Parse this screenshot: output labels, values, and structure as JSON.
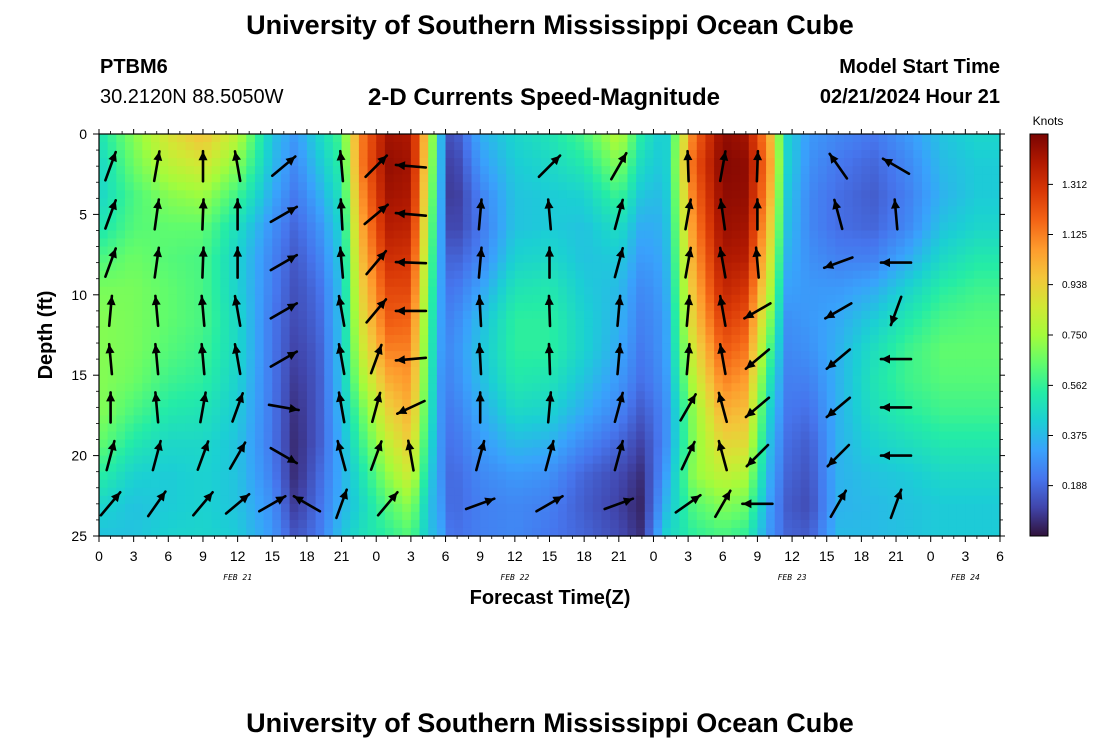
{
  "header": {
    "title": "University of Southern Mississippi Ocean Cube",
    "station_name": "PTBM6",
    "station_coords": "30.2120N  88.5050W",
    "plot_title": "2-D Currents Speed-Magnitude",
    "model_start_label": "Model Start Time",
    "model_start_value": "02/21/2024 Hour 21"
  },
  "footer": {
    "title": "University of Southern Mississippi Ocean Cube"
  },
  "chart_data": {
    "type": "heatmap",
    "subtype": "depth-time section with current vectors",
    "xlabel": "Forecast Time(Z)",
    "ylabel": "Depth (ft)",
    "x_ticks": [
      "0",
      "3",
      "6",
      "9",
      "12",
      "15",
      "18",
      "21",
      "0",
      "3",
      "6",
      "9",
      "12",
      "15",
      "18",
      "21",
      "0",
      "3",
      "6",
      "9",
      "12",
      "15",
      "18",
      "21",
      "0",
      "3",
      "6"
    ],
    "x_range_hours": [
      0,
      78
    ],
    "day_labels": [
      {
        "label": "FEB 21",
        "hour": 12
      },
      {
        "label": "FEB 22",
        "hour": 36
      },
      {
        "label": "FEB 23",
        "hour": 60
      },
      {
        "label": "FEB 24",
        "hour": 75
      }
    ],
    "y_ticks": [
      0,
      5,
      10,
      15,
      20,
      25
    ],
    "ylim": [
      0,
      25
    ],
    "y_inverted": true,
    "colorbar": {
      "unit_label": "Knots",
      "ticks": [
        "0.188",
        "0.375",
        "0.562",
        "0.750",
        "0.938",
        "1.125",
        "1.312"
      ],
      "range": [
        0,
        1.5
      ],
      "palette": [
        "#30123b",
        "#4145ab",
        "#4675ed",
        "#39a2fc",
        "#1bcfd4",
        "#24eca6",
        "#61fc6c",
        "#a4fc3b",
        "#d1e834",
        "#f3c63a",
        "#fe9b2d",
        "#f36315",
        "#d93806",
        "#b11901",
        "#7a0402"
      ]
    },
    "grid": false,
    "speed_columns": [
      {
        "hour": 0,
        "speeds": [
          0.5,
          0.45,
          0.45,
          0.5,
          0.6,
          0.68,
          0.7,
          0.7,
          0.7,
          0.7,
          0.65,
          0.55,
          0.45,
          0.4
        ]
      },
      {
        "hour": 3,
        "speeds": [
          0.7,
          0.66,
          0.6,
          0.62,
          0.66,
          0.68,
          0.68,
          0.68,
          0.66,
          0.6,
          0.52,
          0.44,
          0.4,
          0.4
        ]
      },
      {
        "hour": 6,
        "speeds": [
          0.88,
          0.8,
          0.7,
          0.64,
          0.62,
          0.64,
          0.64,
          0.62,
          0.58,
          0.52,
          0.46,
          0.42,
          0.42,
          0.44
        ]
      },
      {
        "hour": 9,
        "speeds": [
          0.98,
          0.86,
          0.74,
          0.64,
          0.6,
          0.6,
          0.6,
          0.58,
          0.55,
          0.5,
          0.46,
          0.44,
          0.44,
          0.45
        ]
      },
      {
        "hour": 12,
        "speeds": [
          0.8,
          0.7,
          0.58,
          0.48,
          0.44,
          0.44,
          0.46,
          0.46,
          0.44,
          0.42,
          0.4,
          0.4,
          0.4,
          0.42
        ]
      },
      {
        "hour": 15,
        "speeds": [
          0.4,
          0.38,
          0.34,
          0.28,
          0.25,
          0.24,
          0.22,
          0.22,
          0.22,
          0.22,
          0.22,
          0.24,
          0.28,
          0.3
        ]
      },
      {
        "hour": 17,
        "speeds": [
          0.3,
          0.26,
          0.22,
          0.18,
          0.15,
          0.13,
          0.12,
          0.1,
          0.08,
          0.06,
          0.05,
          0.05,
          0.08,
          0.14
        ]
      },
      {
        "hour": 19,
        "speeds": [
          0.45,
          0.4,
          0.34,
          0.28,
          0.24,
          0.2,
          0.18,
          0.16,
          0.15,
          0.15,
          0.15,
          0.18,
          0.2,
          0.22
        ]
      },
      {
        "hour": 21,
        "speeds": [
          0.6,
          0.55,
          0.5,
          0.45,
          0.42,
          0.4,
          0.4,
          0.4,
          0.4,
          0.38,
          0.36,
          0.35,
          0.36,
          0.4
        ]
      },
      {
        "hour": 22.5,
        "speeds": [
          1.1,
          1.1,
          1.05,
          1.0,
          0.95,
          0.9,
          0.85,
          0.8,
          0.72,
          0.62,
          0.55,
          0.48,
          0.44,
          0.48
        ]
      },
      {
        "hour": 25,
        "speeds": [
          1.42,
          1.45,
          1.42,
          1.38,
          1.32,
          1.25,
          1.2,
          1.12,
          1.02,
          0.92,
          0.82,
          0.72,
          0.62,
          0.55
        ]
      },
      {
        "hour": 27,
        "speeds": [
          1.4,
          1.42,
          1.4,
          1.36,
          1.3,
          1.25,
          1.18,
          1.12,
          1.08,
          1.02,
          0.95,
          0.86,
          0.72,
          0.62
        ]
      },
      {
        "hour": 28.5,
        "speeds": [
          0.9,
          0.85,
          0.8,
          0.75,
          0.7,
          0.66,
          0.62,
          0.6,
          0.58,
          0.55,
          0.5,
          0.45,
          0.4,
          0.4
        ]
      },
      {
        "hour": 29.5,
        "speeds": [
          0.4,
          0.4,
          0.38,
          0.36,
          0.35,
          0.34,
          0.33,
          0.32,
          0.3,
          0.3,
          0.3,
          0.3,
          0.32,
          0.35
        ]
      },
      {
        "hour": 30.5,
        "speeds": [
          0.1,
          0.06,
          0.05,
          0.08,
          0.15,
          0.2,
          0.24,
          0.26,
          0.25,
          0.22,
          0.2,
          0.18,
          0.18,
          0.2
        ]
      },
      {
        "hour": 33,
        "speeds": [
          0.35,
          0.3,
          0.24,
          0.22,
          0.25,
          0.32,
          0.38,
          0.4,
          0.38,
          0.34,
          0.3,
          0.26,
          0.24,
          0.24
        ]
      },
      {
        "hour": 36,
        "speeds": [
          0.45,
          0.42,
          0.4,
          0.4,
          0.44,
          0.5,
          0.55,
          0.55,
          0.52,
          0.46,
          0.38,
          0.3,
          0.26,
          0.26
        ]
      },
      {
        "hour": 39,
        "speeds": [
          0.5,
          0.46,
          0.42,
          0.42,
          0.46,
          0.52,
          0.55,
          0.55,
          0.5,
          0.44,
          0.36,
          0.28,
          0.24,
          0.22
        ]
      },
      {
        "hour": 42,
        "speeds": [
          0.6,
          0.52,
          0.44,
          0.4,
          0.4,
          0.42,
          0.44,
          0.44,
          0.4,
          0.34,
          0.26,
          0.18,
          0.16,
          0.18
        ]
      },
      {
        "hour": 45,
        "speeds": [
          0.8,
          0.7,
          0.58,
          0.48,
          0.42,
          0.38,
          0.36,
          0.34,
          0.3,
          0.25,
          0.18,
          0.12,
          0.1,
          0.12
        ]
      },
      {
        "hour": 47,
        "speeds": [
          0.52,
          0.46,
          0.4,
          0.34,
          0.3,
          0.26,
          0.24,
          0.22,
          0.2,
          0.15,
          0.1,
          0.06,
          0.04,
          0.06
        ]
      },
      {
        "hour": 49,
        "speeds": [
          0.4,
          0.4,
          0.38,
          0.36,
          0.34,
          0.32,
          0.3,
          0.3,
          0.28,
          0.26,
          0.26,
          0.3,
          0.36,
          0.44
        ]
      },
      {
        "hour": 51.5,
        "speeds": [
          1.15,
          1.2,
          1.15,
          1.1,
          1.05,
          1.0,
          0.95,
          0.88,
          0.8,
          0.72,
          0.7,
          0.72,
          0.62,
          0.55
        ]
      },
      {
        "hour": 54,
        "speeds": [
          1.46,
          1.48,
          1.46,
          1.44,
          1.4,
          1.35,
          1.28,
          1.2,
          1.12,
          1.02,
          0.92,
          0.82,
          0.7,
          0.6
        ]
      },
      {
        "hour": 56,
        "speeds": [
          1.42,
          1.46,
          1.45,
          1.42,
          1.38,
          1.3,
          1.22,
          1.14,
          1.06,
          0.98,
          0.9,
          0.78,
          0.66,
          0.55
        ]
      },
      {
        "hour": 58,
        "speeds": [
          1.05,
          1.1,
          1.05,
          0.98,
          0.9,
          0.82,
          0.72,
          0.62,
          0.52,
          0.45,
          0.4,
          0.36,
          0.32,
          0.3
        ]
      },
      {
        "hour": 59.5,
        "speeds": [
          0.45,
          0.45,
          0.42,
          0.4,
          0.36,
          0.32,
          0.28,
          0.26,
          0.24,
          0.22,
          0.2,
          0.18,
          0.16,
          0.18
        ]
      },
      {
        "hour": 61.5,
        "speeds": [
          0.3,
          0.28,
          0.26,
          0.26,
          0.28,
          0.3,
          0.3,
          0.28,
          0.24,
          0.2,
          0.16,
          0.14,
          0.12,
          0.16
        ]
      },
      {
        "hour": 64,
        "speeds": [
          0.26,
          0.22,
          0.2,
          0.2,
          0.24,
          0.3,
          0.34,
          0.36,
          0.36,
          0.36,
          0.36,
          0.36,
          0.36,
          0.38
        ]
      },
      {
        "hour": 67,
        "speeds": [
          0.22,
          0.18,
          0.16,
          0.18,
          0.24,
          0.34,
          0.42,
          0.48,
          0.5,
          0.48,
          0.44,
          0.4,
          0.38,
          0.38
        ]
      },
      {
        "hour": 70,
        "speeds": [
          0.3,
          0.26,
          0.24,
          0.26,
          0.34,
          0.44,
          0.52,
          0.58,
          0.58,
          0.54,
          0.48,
          0.42,
          0.4,
          0.4
        ]
      },
      {
        "hour": 73,
        "speeds": [
          0.4,
          0.38,
          0.36,
          0.4,
          0.46,
          0.54,
          0.6,
          0.64,
          0.62,
          0.58,
          0.52,
          0.46,
          0.42,
          0.42
        ]
      },
      {
        "hour": 76,
        "speeds": [
          0.45,
          0.42,
          0.42,
          0.45,
          0.52,
          0.58,
          0.62,
          0.64,
          0.62,
          0.58,
          0.52,
          0.46,
          0.42,
          0.42
        ]
      },
      {
        "hour": 78,
        "speeds": [
          0.45,
          0.42,
          0.42,
          0.45,
          0.52,
          0.58,
          0.62,
          0.64,
          0.62,
          0.58,
          0.52,
          0.46,
          0.42,
          0.42
        ]
      }
    ],
    "vector_depths_ft": [
      2,
      5,
      8,
      11,
      14,
      17,
      20,
      23
    ],
    "vector_rows": [
      {
        "depth": 2,
        "hours": [
          1,
          5,
          9,
          12,
          16,
          21,
          24,
          27,
          39,
          45,
          51,
          54,
          57,
          64,
          69
        ],
        "directions": [
          20,
          10,
          0,
          -10,
          50,
          -5,
          45,
          -85,
          45,
          30,
          -2,
          10,
          2,
          -35,
          -60
        ]
      },
      {
        "depth": 5,
        "hours": [
          1,
          5,
          9,
          12,
          16,
          21,
          24,
          27,
          33,
          39,
          45,
          51,
          54,
          57,
          64,
          69
        ],
        "directions": [
          20,
          8,
          2,
          0,
          60,
          -3,
          50,
          -85,
          5,
          -5,
          15,
          10,
          -8,
          0,
          -15,
          -5
        ]
      },
      {
        "depth": 8,
        "hours": [
          1,
          5,
          9,
          12,
          16,
          21,
          24,
          27,
          33,
          39,
          45,
          51,
          54,
          57,
          64,
          69
        ],
        "directions": [
          20,
          8,
          2,
          0,
          60,
          -5,
          40,
          -88,
          5,
          0,
          15,
          10,
          -10,
          -5,
          -110,
          -90
        ]
      },
      {
        "depth": 11,
        "hours": [
          1,
          5,
          9,
          12,
          16,
          21,
          24,
          27,
          33,
          39,
          45,
          51,
          54,
          57,
          64,
          69
        ],
        "directions": [
          5,
          -5,
          -5,
          -10,
          60,
          -10,
          40,
          -90,
          -3,
          -2,
          5,
          5,
          -10,
          -120,
          -120,
          -160
        ]
      },
      {
        "depth": 14,
        "hours": [
          1,
          5,
          9,
          12,
          16,
          21,
          24,
          27,
          33,
          39,
          45,
          51,
          54,
          57,
          64,
          69
        ],
        "directions": [
          -5,
          -5,
          -5,
          -10,
          60,
          -10,
          20,
          -95,
          -3,
          -2,
          5,
          5,
          -10,
          -130,
          -130,
          -90
        ]
      },
      {
        "depth": 17,
        "hours": [
          1,
          5,
          9,
          12,
          16,
          21,
          24,
          27,
          33,
          39,
          45,
          51,
          54,
          57,
          64,
          69
        ],
        "directions": [
          0,
          -5,
          10,
          20,
          100,
          -10,
          15,
          -115,
          0,
          5,
          15,
          30,
          -15,
          -130,
          -130,
          -90
        ]
      },
      {
        "depth": 20,
        "hours": [
          1,
          5,
          9,
          12,
          16,
          21,
          24,
          27,
          33,
          39,
          45,
          51,
          54,
          57,
          64,
          69
        ],
        "directions": [
          15,
          15,
          20,
          30,
          120,
          -15,
          20,
          -10,
          15,
          15,
          15,
          25,
          -15,
          -135,
          -135,
          -90
        ]
      },
      {
        "depth": 23,
        "hours": [
          1,
          5,
          9,
          12,
          15,
          18,
          21,
          25,
          33,
          39,
          45,
          51,
          54,
          57,
          64,
          69
        ],
        "directions": [
          40,
          35,
          40,
          50,
          60,
          -60,
          20,
          40,
          70,
          60,
          70,
          55,
          30,
          -90,
          30,
          20
        ]
      }
    ]
  }
}
